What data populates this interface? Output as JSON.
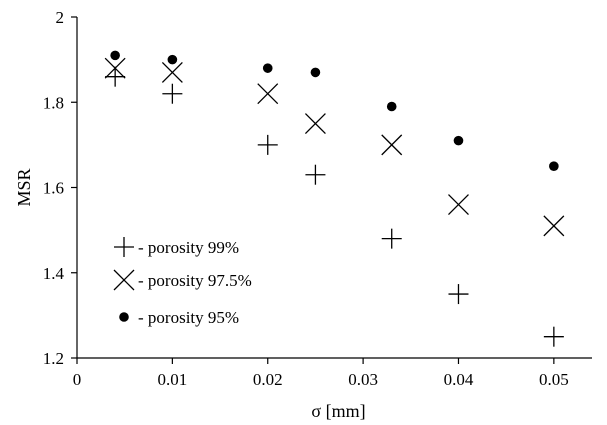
{
  "chart_data": {
    "type": "scatter",
    "xlabel": "σ [mm]",
    "ylabel": "MSR",
    "xlim": [
      0,
      0.054
    ],
    "ylim": [
      1.2,
      2.0
    ],
    "xticks": [
      "0",
      "0.01",
      "0.02",
      "0.03",
      "0.04",
      "0.05"
    ],
    "yticks": [
      "1.2",
      "1.4",
      "1.6",
      "1.8",
      "2"
    ],
    "grid": false,
    "legend_position": "bottom-left",
    "series": [
      {
        "name": "- porosity 99%",
        "marker": "plus",
        "x": [
          0.004,
          0.01,
          0.02,
          0.025,
          0.033,
          0.04,
          0.05
        ],
        "y": [
          1.86,
          1.82,
          1.7,
          1.63,
          1.48,
          1.35,
          1.25
        ]
      },
      {
        "name": "- porosity 97.5%",
        "marker": "cross",
        "x": [
          0.004,
          0.01,
          0.02,
          0.025,
          0.033,
          0.04,
          0.05
        ],
        "y": [
          1.88,
          1.87,
          1.82,
          1.75,
          1.7,
          1.56,
          1.51
        ]
      },
      {
        "name": "- porosity 95%",
        "marker": "dot",
        "x": [
          0.004,
          0.01,
          0.02,
          0.025,
          0.033,
          0.04,
          0.05
        ],
        "y": [
          1.91,
          1.9,
          1.88,
          1.87,
          1.79,
          1.71,
          1.65
        ]
      }
    ],
    "colors": {
      "axis": "#000000",
      "marker": "#000000"
    }
  }
}
